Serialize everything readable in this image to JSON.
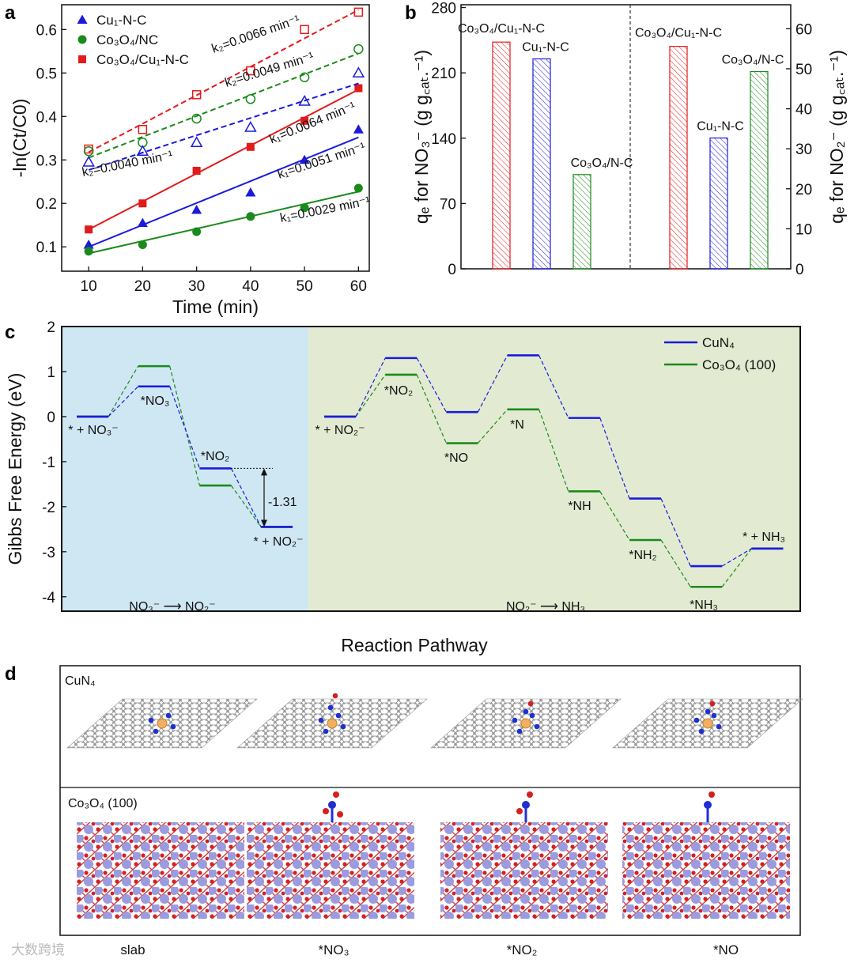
{
  "chart_data": [
    {
      "panel": "a",
      "type": "scatter",
      "xlabel": "Time (min)",
      "ylabel": "-ln(Ct/C0)",
      "xlim": [
        5,
        62
      ],
      "ylim": [
        0.044,
        0.657
      ],
      "xticks": [
        "10",
        "20",
        "30",
        "40",
        "50",
        "60"
      ],
      "yticks": [
        "0.1",
        "0.2",
        "0.3",
        "0.4",
        "0.5",
        "0.6"
      ],
      "x": [
        10,
        20,
        30,
        40,
        50,
        60
      ],
      "legend": [
        {
          "label": "Cu₁-N-C",
          "marker": "triangle",
          "color": "#1a1adc"
        },
        {
          "label": "Co₃O₄/NC",
          "marker": "circle",
          "color": "#1a8a1a"
        },
        {
          "label": "Co₃O₄/Cu₁-N-C",
          "marker": "square",
          "color": "#e31a1a"
        }
      ],
      "series": [
        {
          "name": "Co₃O₄/Cu₁-N-C k1",
          "marker": "square",
          "filled": true,
          "color": "#e31a1a",
          "values": [
            0.14,
            0.2,
            0.275,
            0.33,
            0.39,
            0.465
          ],
          "fit": [
            0.14,
            0.462
          ],
          "dashed": false
        },
        {
          "name": "Cu₁-N-C k1",
          "marker": "triangle",
          "filled": true,
          "color": "#1a1adc",
          "values": [
            0.105,
            0.155,
            0.185,
            0.225,
            0.3,
            0.37
          ],
          "fit": [
            0.1,
            0.352
          ],
          "dashed": false
        },
        {
          "name": "Co₃O₄/NC k1",
          "marker": "circle",
          "filled": true,
          "color": "#1a8a1a",
          "values": [
            0.09,
            0.105,
            0.135,
            0.17,
            0.19,
            0.235
          ],
          "fit": [
            0.085,
            0.227
          ],
          "dashed": false
        },
        {
          "name": "Co₃O₄/Cu₁-N-C k2",
          "marker": "square",
          "filled": false,
          "color": "#e31a1a",
          "values": [
            0.325,
            0.37,
            0.45,
            0.505,
            0.6,
            0.64
          ],
          "fit": [
            0.318,
            0.645
          ],
          "dashed": true
        },
        {
          "name": "Co₃O₄/NC k2",
          "marker": "circle",
          "filled": false,
          "color": "#1a8a1a",
          "values": [
            0.32,
            0.34,
            0.395,
            0.44,
            0.49,
            0.555
          ],
          "fit": [
            0.305,
            0.545
          ],
          "dashed": true
        },
        {
          "name": "Cu₁-N-C k2",
          "marker": "triangle",
          "filled": false,
          "color": "#1a1adc",
          "values": [
            0.295,
            0.32,
            0.34,
            0.375,
            0.435,
            0.5
          ],
          "fit": [
            0.277,
            0.476
          ],
          "dashed": true
        }
      ],
      "annotations": [
        "k₂=0.0066 min⁻¹",
        "k₂=0.0049 min⁻¹",
        "k₂=0.0040 min⁻¹",
        "k₁=0.0064 min⁻¹",
        "k₁=0.0051 min⁻¹",
        "k₁=0.0029 min⁻¹"
      ]
    },
    {
      "panel": "b",
      "type": "bar",
      "ylabel_left": "qₑ for NO₃⁻ (g g꜀ₐₜ.⁻¹)",
      "ylabel_right": "qₑ for NO₂⁻ (g g꜀ₐₜ.⁻¹)",
      "ylim_left": [
        0,
        283
      ],
      "ylim_right": [
        0,
        66
      ],
      "yticks_left": [
        "0",
        "70",
        "140",
        "210",
        "280"
      ],
      "yticks_right": [
        "0",
        "10",
        "20",
        "30",
        "40",
        "50",
        "60"
      ],
      "groups": [
        {
          "axis": "left",
          "categories": [
            "Co₃O₄/Cu₁-N-C",
            "Cu₁-N-C",
            "Co₃O₄/N-C"
          ],
          "values": [
            243,
            225,
            101
          ],
          "colors": [
            "#e31a1a",
            "#1a1adc",
            "#1a8a1a"
          ]
        },
        {
          "axis": "right",
          "categories": [
            "Co₃O₄/Cu₁-N-C",
            "Cu₁-N-C",
            "Co₃O₄/N-C"
          ],
          "values": [
            55.6,
            32.7,
            49.3
          ],
          "colors": [
            "#e31a1a",
            "#1a1adc",
            "#1a8a1a"
          ]
        }
      ]
    },
    {
      "panel": "c",
      "type": "line",
      "xlabel": "Reaction Pathway",
      "ylabel": "Gibbs Free Energy (eV)",
      "ylim": [
        -4.32,
        2
      ],
      "yticks": [
        "-4",
        "-3",
        "-2",
        "-1",
        "0",
        "1",
        "2"
      ],
      "legend": [
        {
          "label": "CuN₄",
          "color": "#1a1adc"
        },
        {
          "label": "Co₃O₄ (100)",
          "color": "#1a8a1a"
        }
      ],
      "steps": [
        "* + NO₃⁻",
        "*NO₃",
        "*NO₂",
        "* + NO₂⁻",
        "* + NO₂⁻",
        "*NO₂",
        "*NO",
        "*N",
        "*NH",
        "*NH₂",
        "*NH₃",
        "* + NH₃"
      ],
      "segments": [
        [
          0,
          3
        ],
        [
          4,
          11
        ]
      ],
      "series": [
        {
          "name": "CuN₄",
          "color": "#1a1adc",
          "values": [
            0,
            0.67,
            -1.15,
            -2.45,
            0,
            1.3,
            0.1,
            1.36,
            -0.03,
            -1.82,
            -3.32,
            -2.93
          ]
        },
        {
          "name": "Co₃O₄ (100)",
          "color": "#1a8a1a",
          "values": [
            0,
            1.12,
            -1.53,
            -2.45,
            0,
            0.93,
            -0.59,
            0.16,
            -1.66,
            -2.74,
            -3.78,
            -2.93
          ]
        }
      ],
      "delta_label": "-1.31",
      "regions": [
        {
          "label": "NO₃⁻ ⟶ NO₂⁻",
          "color": "#cfe7f3"
        },
        {
          "label": "NO₂⁻ ⟶ NH₃",
          "color": "#e2ebd1"
        }
      ]
    }
  ],
  "panel_letters": {
    "a": "a",
    "b": "b",
    "c": "c",
    "d": "d"
  },
  "panel_d": {
    "row_labels": [
      "CuN₄",
      "Co₃O₄ (100)"
    ],
    "column_labels": [
      "slab",
      "*NO₃",
      "*NO₂",
      "*NO"
    ]
  },
  "watermark": "大数跨境"
}
